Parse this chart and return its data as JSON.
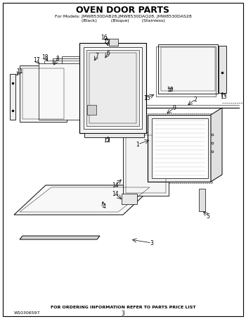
{
  "title": "OVEN DOOR PARTS",
  "subtitle": "For Models: JMW8530DAB28,JMW8530DAQ28, JMW8530DAS28",
  "subtitle2": "(Black)          (Bisque)         (Stainless)",
  "footer_center": "FOR ORDERING INFORMATION REFER TO PARTS PRICE LIST",
  "footer_left": "W10306597",
  "footer_page": "3",
  "bg_color": "#ffffff"
}
